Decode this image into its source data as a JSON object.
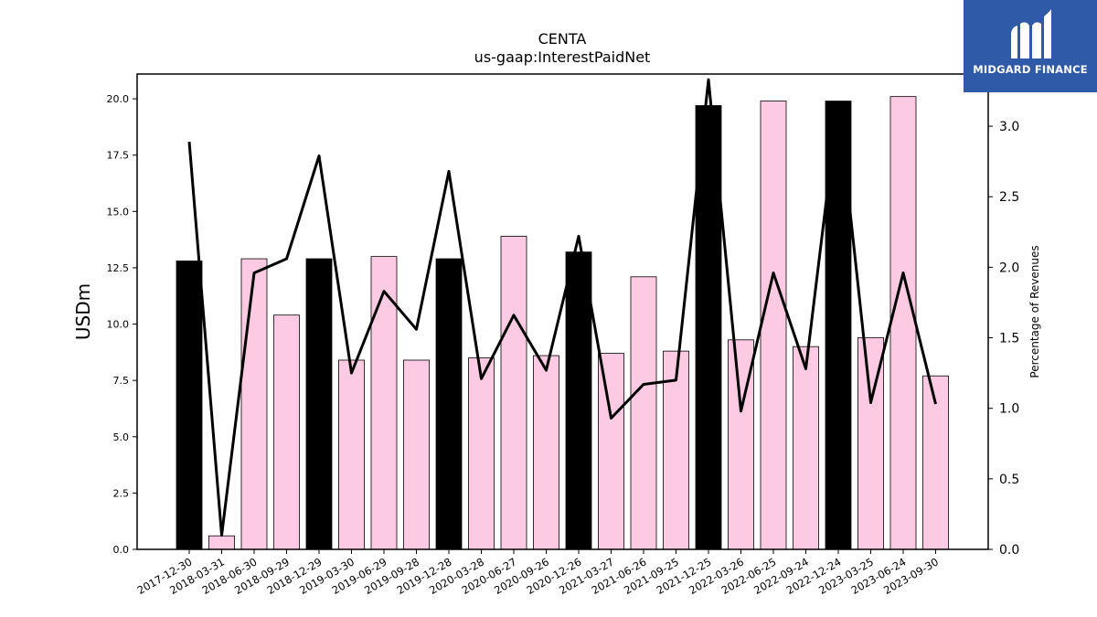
{
  "chart_data": {
    "type": "bar",
    "title": "CENTA",
    "subtitle": "us-gaap:InterestPaidNet",
    "ylabel": "USDm",
    "y2label": "Percentage of Revenues",
    "ylim": [
      0,
      21.1
    ],
    "y2lim": [
      0,
      3.37
    ],
    "yticks": [
      "0.0",
      "2.5",
      "5.0",
      "7.5",
      "10.0",
      "12.5",
      "15.0",
      "17.5",
      "20.0"
    ],
    "y2ticks": [
      "0.0",
      "0.5",
      "1.0",
      "1.5",
      "2.0",
      "2.5",
      "3.0"
    ],
    "categories": [
      "2017-12-30",
      "2018-03-31",
      "2018-06-30",
      "2018-09-29",
      "2018-12-29",
      "2019-03-30",
      "2019-06-29",
      "2019-09-28",
      "2019-12-28",
      "2020-03-28",
      "2020-06-27",
      "2020-09-26",
      "2020-12-26",
      "2021-03-27",
      "2021-06-26",
      "2021-09-25",
      "2021-12-25",
      "2022-03-26",
      "2022-06-25",
      "2022-09-24",
      "2022-12-24",
      "2023-03-25",
      "2023-06-24",
      "2023-09-30"
    ],
    "series": [
      {
        "kind": "bar",
        "values": [
          12.8,
          0.6,
          12.9,
          10.4,
          12.9,
          8.4,
          13.0,
          8.4,
          12.9,
          8.5,
          13.9,
          8.6,
          13.2,
          8.7,
          12.1,
          8.8,
          19.7,
          9.3,
          19.9,
          9.0,
          19.9,
          9.4,
          20.1,
          7.7
        ],
        "annual_flags": [
          true,
          false,
          false,
          false,
          true,
          false,
          false,
          false,
          true,
          false,
          false,
          false,
          true,
          false,
          false,
          false,
          true,
          false,
          false,
          false,
          true,
          false,
          false,
          false
        ]
      },
      {
        "kind": "line",
        "axis": "right",
        "values": [
          2.89,
          0.1,
          1.96,
          2.06,
          2.79,
          1.25,
          1.83,
          1.56,
          2.68,
          1.21,
          1.66,
          1.27,
          2.22,
          0.93,
          1.17,
          1.2,
          3.33,
          0.98,
          1.96,
          1.28,
          3.17,
          1.04,
          1.96,
          1.03
        ]
      }
    ],
    "colors": {
      "annual_bar": "#000000",
      "quarter_bar": "#fccbe3",
      "line": "#000000"
    }
  },
  "logo": {
    "text": "MIDGARD FINANCE",
    "icon": "midgard-logo-icon"
  }
}
